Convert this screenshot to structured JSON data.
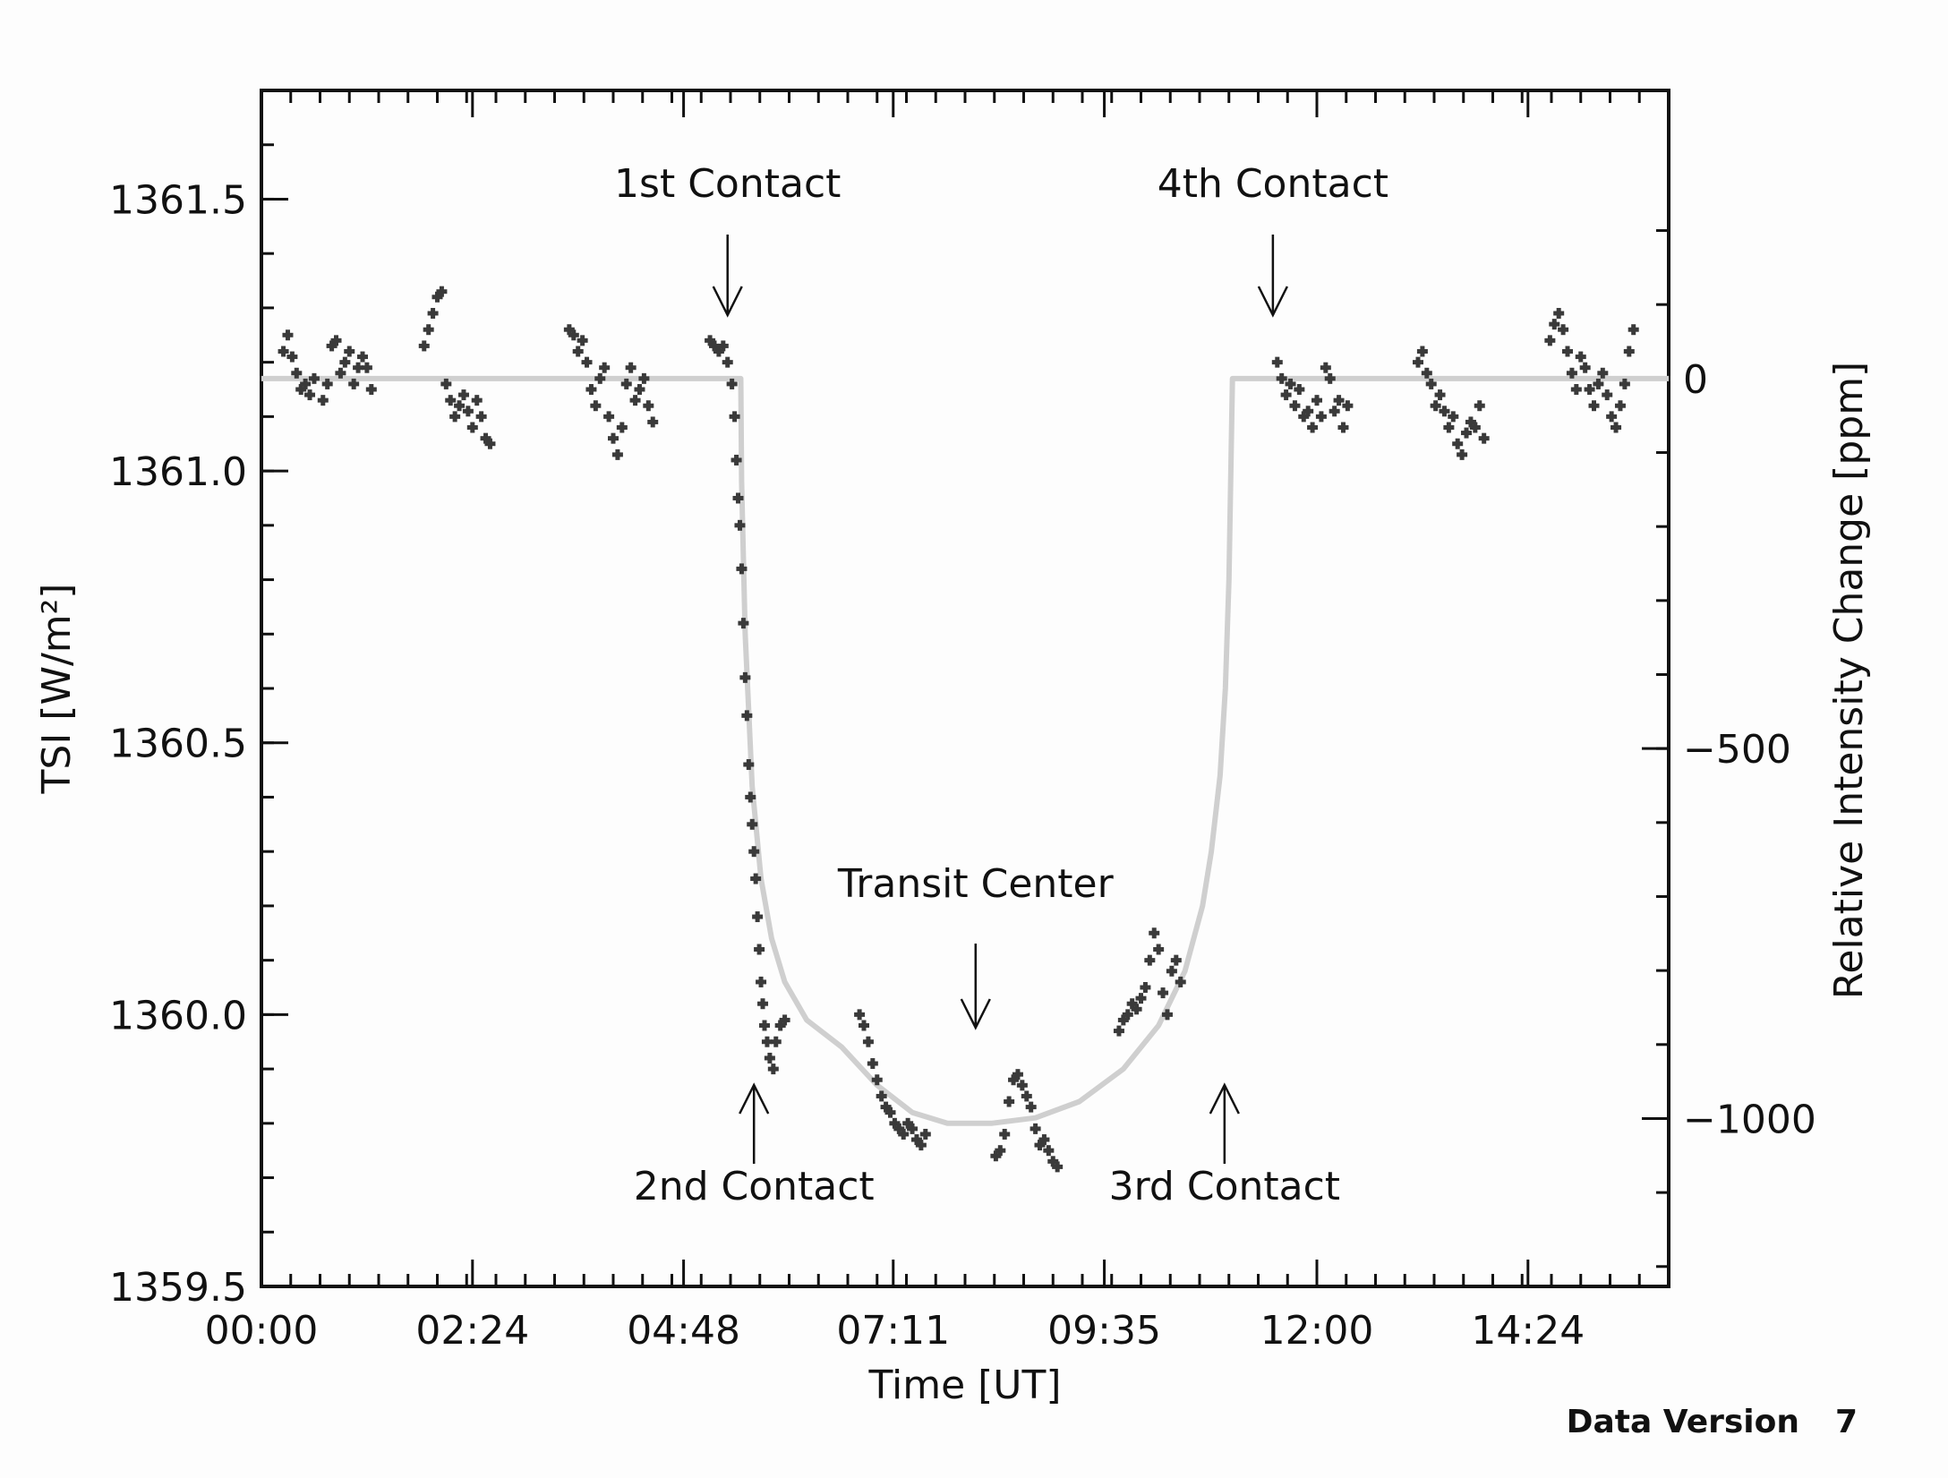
{
  "chart_data": {
    "type": "scatter",
    "xlabel": "Time [UT]",
    "ylabel": "TSI [W/m²]",
    "y2label": "Relative Intensity Change [ppm]",
    "xlim": [
      0,
      16
    ],
    "ylim": [
      1359.5,
      1361.7
    ],
    "x_tick_labels": [
      "00:00",
      "02:24",
      "04:48",
      "07:11",
      "09:35",
      "12:00",
      "14:24"
    ],
    "x_ticks_hours": [
      0,
      2.4,
      4.8,
      7.1833,
      9.5833,
      12.0,
      14.4
    ],
    "y_ticks": [
      1359.5,
      1360.0,
      1360.5,
      1361.0,
      1361.5
    ],
    "y_tick_labels": [
      "1359.5",
      "1360.0",
      "1360.5",
      "1361.0",
      "1361.5"
    ],
    "y2_ticks_ppm": [
      0,
      -500,
      -1000
    ],
    "y2_tick_labels": [
      "0",
      "−500",
      "−1000"
    ],
    "y2_zero_tsi": 1361.17,
    "y2_tsi_per_ppm": 0.00136117,
    "grid": false,
    "legend": "none",
    "series": [
      {
        "type": "scatter",
        "color": "#3a3a3a",
        "marker": "plus",
        "points": [
          [
            0.25,
            1361.22
          ],
          [
            0.3,
            1361.25
          ],
          [
            0.35,
            1361.21
          ],
          [
            0.4,
            1361.18
          ],
          [
            0.45,
            1361.15
          ],
          [
            0.5,
            1361.16
          ],
          [
            0.55,
            1361.14
          ],
          [
            0.6,
            1361.17
          ],
          [
            0.7,
            1361.13
          ],
          [
            0.75,
            1361.16
          ],
          [
            0.8,
            1361.23
          ],
          [
            0.85,
            1361.24
          ],
          [
            0.9,
            1361.18
          ],
          [
            0.95,
            1361.2
          ],
          [
            1.0,
            1361.22
          ],
          [
            1.05,
            1361.16
          ],
          [
            1.1,
            1361.19
          ],
          [
            1.15,
            1361.21
          ],
          [
            1.2,
            1361.19
          ],
          [
            1.25,
            1361.15
          ],
          [
            1.85,
            1361.23
          ],
          [
            1.9,
            1361.26
          ],
          [
            1.95,
            1361.29
          ],
          [
            2.0,
            1361.32
          ],
          [
            2.05,
            1361.33
          ],
          [
            2.1,
            1361.16
          ],
          [
            2.15,
            1361.13
          ],
          [
            2.2,
            1361.1
          ],
          [
            2.25,
            1361.12
          ],
          [
            2.3,
            1361.14
          ],
          [
            2.35,
            1361.11
          ],
          [
            2.4,
            1361.08
          ],
          [
            2.45,
            1361.13
          ],
          [
            2.5,
            1361.1
          ],
          [
            2.55,
            1361.06
          ],
          [
            2.6,
            1361.05
          ],
          [
            3.5,
            1361.26
          ],
          [
            3.55,
            1361.25
          ],
          [
            3.6,
            1361.22
          ],
          [
            3.65,
            1361.24
          ],
          [
            3.7,
            1361.2
          ],
          [
            3.75,
            1361.15
          ],
          [
            3.8,
            1361.12
          ],
          [
            3.85,
            1361.17
          ],
          [
            3.9,
            1361.19
          ],
          [
            3.95,
            1361.1
          ],
          [
            4.0,
            1361.06
          ],
          [
            4.05,
            1361.03
          ],
          [
            4.1,
            1361.08
          ],
          [
            4.15,
            1361.16
          ],
          [
            4.2,
            1361.19
          ],
          [
            4.25,
            1361.13
          ],
          [
            4.3,
            1361.15
          ],
          [
            4.35,
            1361.17
          ],
          [
            4.4,
            1361.12
          ],
          [
            4.45,
            1361.09
          ],
          [
            5.1,
            1361.24
          ],
          [
            5.15,
            1361.23
          ],
          [
            5.2,
            1361.22
          ],
          [
            5.25,
            1361.23
          ],
          [
            5.3,
            1361.2
          ],
          [
            5.35,
            1361.16
          ],
          [
            5.38,
            1361.1
          ],
          [
            5.4,
            1361.02
          ],
          [
            5.42,
            1360.95
          ],
          [
            5.44,
            1360.9
          ],
          [
            5.46,
            1360.82
          ],
          [
            5.48,
            1360.72
          ],
          [
            5.5,
            1360.62
          ],
          [
            5.52,
            1360.55
          ],
          [
            5.54,
            1360.46
          ],
          [
            5.56,
            1360.4
          ],
          [
            5.58,
            1360.35
          ],
          [
            5.6,
            1360.3
          ],
          [
            5.62,
            1360.25
          ],
          [
            5.64,
            1360.18
          ],
          [
            5.66,
            1360.12
          ],
          [
            5.68,
            1360.06
          ],
          [
            5.7,
            1360.02
          ],
          [
            5.72,
            1359.98
          ],
          [
            5.75,
            1359.95
          ],
          [
            5.78,
            1359.92
          ],
          [
            5.82,
            1359.9
          ],
          [
            5.85,
            1359.95
          ],
          [
            5.9,
            1359.98
          ],
          [
            5.95,
            1359.99
          ],
          [
            6.8,
            1360.0
          ],
          [
            6.85,
            1359.98
          ],
          [
            6.9,
            1359.95
          ],
          [
            6.95,
            1359.91
          ],
          [
            7.0,
            1359.88
          ],
          [
            7.05,
            1359.85
          ],
          [
            7.1,
            1359.83
          ],
          [
            7.15,
            1359.82
          ],
          [
            7.2,
            1359.8
          ],
          [
            7.25,
            1359.79
          ],
          [
            7.3,
            1359.78
          ],
          [
            7.35,
            1359.8
          ],
          [
            7.4,
            1359.79
          ],
          [
            7.45,
            1359.77
          ],
          [
            7.5,
            1359.76
          ],
          [
            7.55,
            1359.78
          ],
          [
            8.35,
            1359.74
          ],
          [
            8.4,
            1359.75
          ],
          [
            8.45,
            1359.78
          ],
          [
            8.5,
            1359.84
          ],
          [
            8.55,
            1359.88
          ],
          [
            8.6,
            1359.89
          ],
          [
            8.65,
            1359.87
          ],
          [
            8.7,
            1359.85
          ],
          [
            8.75,
            1359.83
          ],
          [
            8.8,
            1359.79
          ],
          [
            8.85,
            1359.76
          ],
          [
            8.9,
            1359.77
          ],
          [
            8.95,
            1359.75
          ],
          [
            9.0,
            1359.73
          ],
          [
            9.05,
            1359.72
          ],
          [
            9.75,
            1359.97
          ],
          [
            9.8,
            1359.99
          ],
          [
            9.85,
            1360.0
          ],
          [
            9.9,
            1360.02
          ],
          [
            9.95,
            1360.01
          ],
          [
            10.0,
            1360.03
          ],
          [
            10.05,
            1360.05
          ],
          [
            10.1,
            1360.1
          ],
          [
            10.15,
            1360.15
          ],
          [
            10.2,
            1360.12
          ],
          [
            10.25,
            1360.04
          ],
          [
            10.3,
            1360.0
          ],
          [
            10.35,
            1360.08
          ],
          [
            10.4,
            1360.1
          ],
          [
            10.45,
            1360.06
          ],
          [
            11.55,
            1361.2
          ],
          [
            11.6,
            1361.17
          ],
          [
            11.65,
            1361.14
          ],
          [
            11.7,
            1361.16
          ],
          [
            11.75,
            1361.12
          ],
          [
            11.8,
            1361.15
          ],
          [
            11.85,
            1361.1
          ],
          [
            11.9,
            1361.11
          ],
          [
            11.95,
            1361.08
          ],
          [
            12.0,
            1361.13
          ],
          [
            12.05,
            1361.1
          ],
          [
            12.1,
            1361.19
          ],
          [
            12.15,
            1361.17
          ],
          [
            12.2,
            1361.11
          ],
          [
            12.25,
            1361.13
          ],
          [
            12.3,
            1361.08
          ],
          [
            12.35,
            1361.12
          ],
          [
            13.15,
            1361.2
          ],
          [
            13.2,
            1361.22
          ],
          [
            13.25,
            1361.18
          ],
          [
            13.3,
            1361.16
          ],
          [
            13.35,
            1361.12
          ],
          [
            13.4,
            1361.14
          ],
          [
            13.45,
            1361.11
          ],
          [
            13.5,
            1361.08
          ],
          [
            13.55,
            1361.1
          ],
          [
            13.6,
            1361.05
          ],
          [
            13.65,
            1361.03
          ],
          [
            13.7,
            1361.07
          ],
          [
            13.75,
            1361.09
          ],
          [
            13.8,
            1361.08
          ],
          [
            13.85,
            1361.12
          ],
          [
            13.9,
            1361.06
          ],
          [
            14.65,
            1361.24
          ],
          [
            14.7,
            1361.27
          ],
          [
            14.75,
            1361.29
          ],
          [
            14.8,
            1361.26
          ],
          [
            14.85,
            1361.22
          ],
          [
            14.9,
            1361.18
          ],
          [
            14.95,
            1361.15
          ],
          [
            15.0,
            1361.21
          ],
          [
            15.05,
            1361.19
          ],
          [
            15.1,
            1361.15
          ],
          [
            15.15,
            1361.12
          ],
          [
            15.2,
            1361.16
          ],
          [
            15.25,
            1361.18
          ],
          [
            15.3,
            1361.14
          ],
          [
            15.35,
            1361.1
          ],
          [
            15.4,
            1361.08
          ],
          [
            15.45,
            1361.12
          ],
          [
            15.5,
            1361.16
          ],
          [
            15.55,
            1361.22
          ],
          [
            15.6,
            1361.26
          ]
        ]
      },
      {
        "type": "line",
        "color": "#cfcfcf",
        "points": [
          [
            0,
            1361.17
          ],
          [
            5.45,
            1361.17
          ],
          [
            5.46,
            1360.98
          ],
          [
            5.5,
            1360.7
          ],
          [
            5.58,
            1360.42
          ],
          [
            5.68,
            1360.25
          ],
          [
            5.8,
            1360.14
          ],
          [
            5.95,
            1360.06
          ],
          [
            6.2,
            1359.99
          ],
          [
            6.6,
            1359.94
          ],
          [
            7.0,
            1359.87
          ],
          [
            7.4,
            1359.82
          ],
          [
            7.8,
            1359.8
          ],
          [
            8.3,
            1359.8
          ],
          [
            8.8,
            1359.81
          ],
          [
            9.3,
            1359.84
          ],
          [
            9.8,
            1359.9
          ],
          [
            10.2,
            1359.98
          ],
          [
            10.5,
            1360.08
          ],
          [
            10.7,
            1360.2
          ],
          [
            10.8,
            1360.3
          ],
          [
            10.9,
            1360.44
          ],
          [
            10.96,
            1360.6
          ],
          [
            11.0,
            1360.8
          ],
          [
            11.02,
            1360.98
          ],
          [
            11.04,
            1361.17
          ],
          [
            16,
            1361.17
          ]
        ]
      }
    ],
    "annotations": [
      {
        "label": "1st Contact",
        "time": 5.3,
        "direction": "down"
      },
      {
        "label": "4th Contact",
        "time": 11.5,
        "direction": "down"
      },
      {
        "label": "Transit Center",
        "time": 8.12,
        "direction": "down"
      },
      {
        "label": "2nd Contact",
        "time": 5.6,
        "direction": "up"
      },
      {
        "label": "3rd Contact",
        "time": 10.95,
        "direction": "up"
      }
    ],
    "footer": {
      "label": "Data Version",
      "value": "7"
    }
  }
}
